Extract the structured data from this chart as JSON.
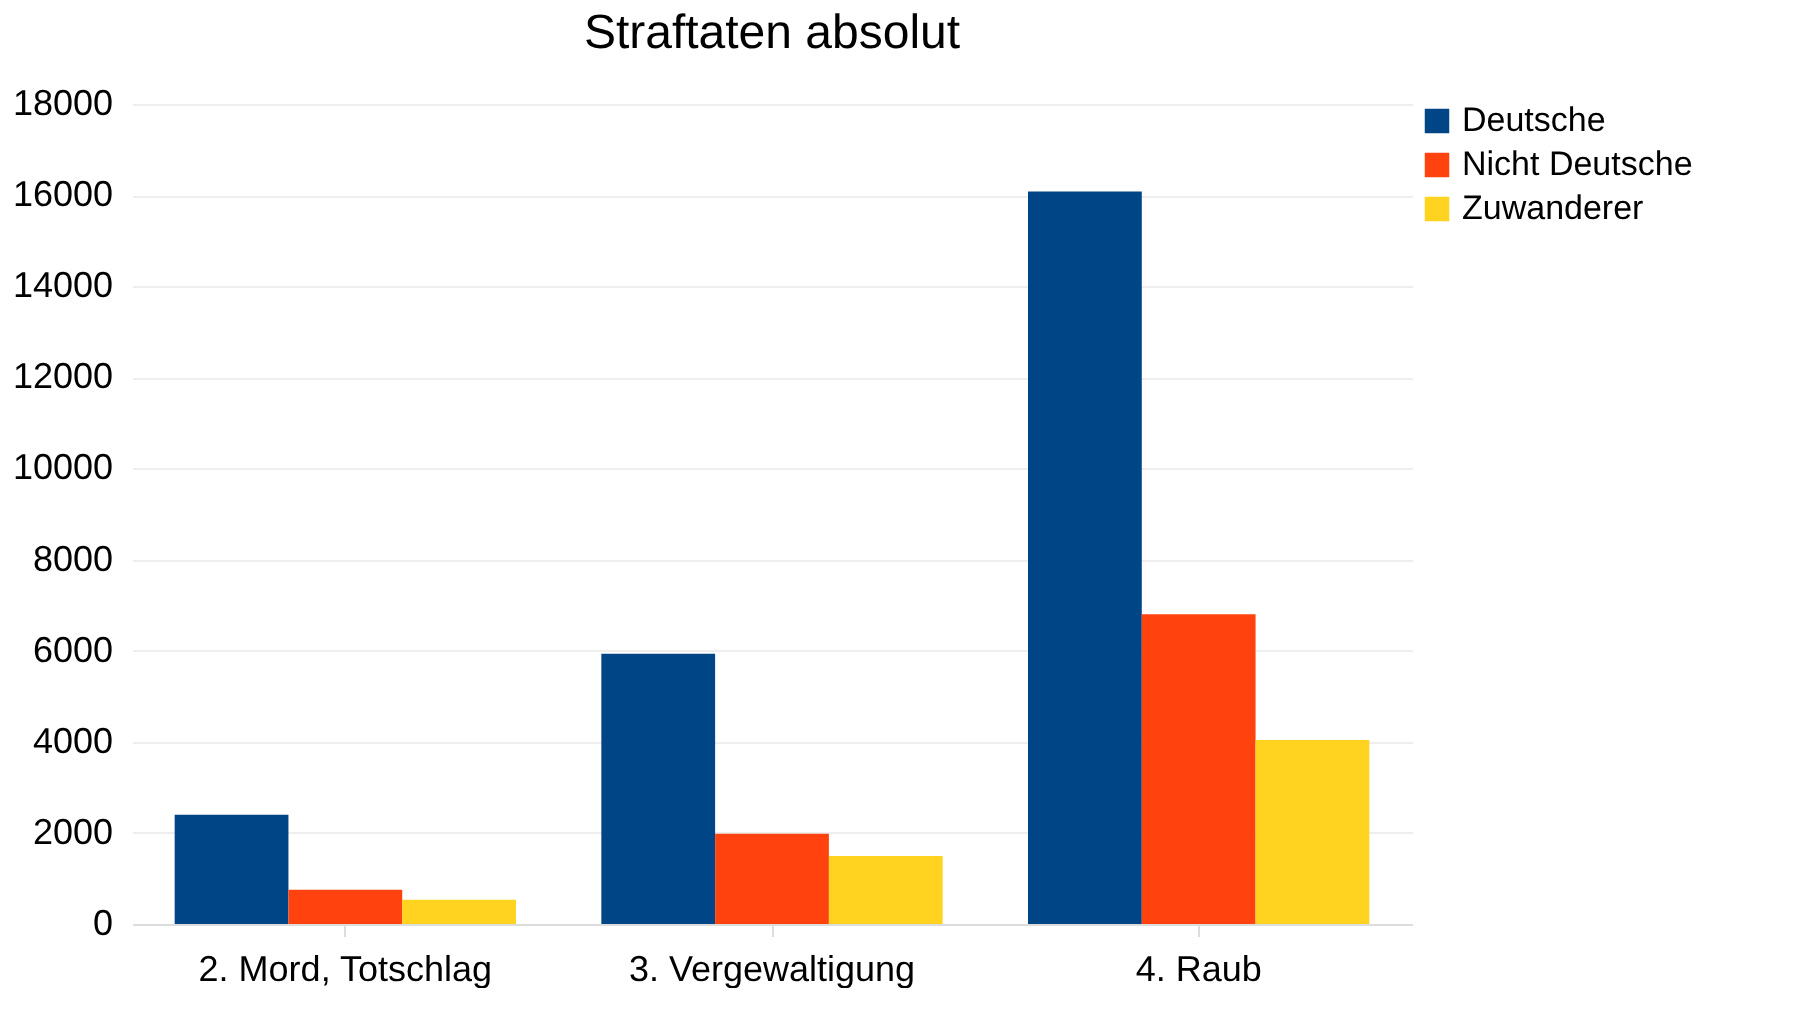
{
  "chart_data": {
    "type": "bar",
    "title": "Straftaten absolut",
    "categories": [
      "2. Mord, Totschlag",
      "3. Vergewaltigung",
      "4. Raub"
    ],
    "series": [
      {
        "name": "Deutsche",
        "color": "#004586",
        "values": [
          2400,
          5930,
          16080
        ]
      },
      {
        "name": "Nicht Deutsche",
        "color": "#ff420e",
        "values": [
          750,
          1980,
          6800
        ]
      },
      {
        "name": "Zuwanderer",
        "color": "#ffd320",
        "values": [
          530,
          1490,
          4040
        ]
      }
    ],
    "ylim": [
      0,
      18000
    ],
    "yticks": [
      0,
      2000,
      4000,
      6000,
      8000,
      10000,
      12000,
      14000,
      16000,
      18000
    ],
    "grid": "y",
    "legend": "right"
  }
}
